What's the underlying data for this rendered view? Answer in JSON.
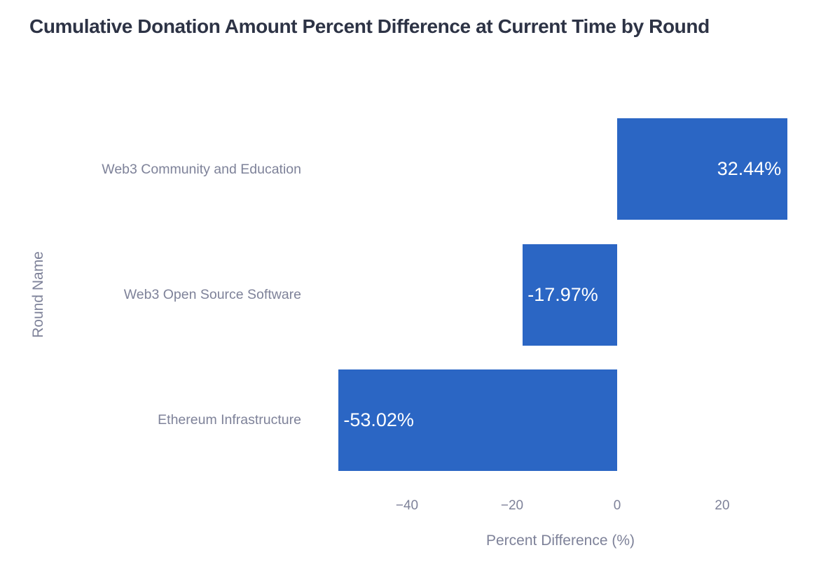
{
  "chart_data": {
    "type": "bar",
    "orientation": "horizontal",
    "title": "Cumulative Donation Amount Percent Difference at Current Time by Round",
    "categories": [
      "Web3 Community and Education",
      "Web3 Open Source Software",
      "Ethereum Infrastructure"
    ],
    "values": [
      32.44,
      -17.97,
      -53.02
    ],
    "value_labels": [
      "32.44%",
      "-17.97%",
      "-53.02%"
    ],
    "value_label_position": "inside",
    "xlabel": "Percent Difference (%)",
    "ylabel": "Round Name",
    "xticks": [
      {
        "value": -40,
        "label": "−40"
      },
      {
        "value": -20,
        "label": "−20"
      },
      {
        "value": 0,
        "label": "0"
      },
      {
        "value": 20,
        "label": "20"
      }
    ],
    "xlim": [
      -57,
      36
    ],
    "grid": false,
    "legend": false,
    "colors": {
      "bar": "#2b66c4",
      "value_label": "#ffffff",
      "title": "#2d3345",
      "axis_text": "#7e8299"
    }
  }
}
